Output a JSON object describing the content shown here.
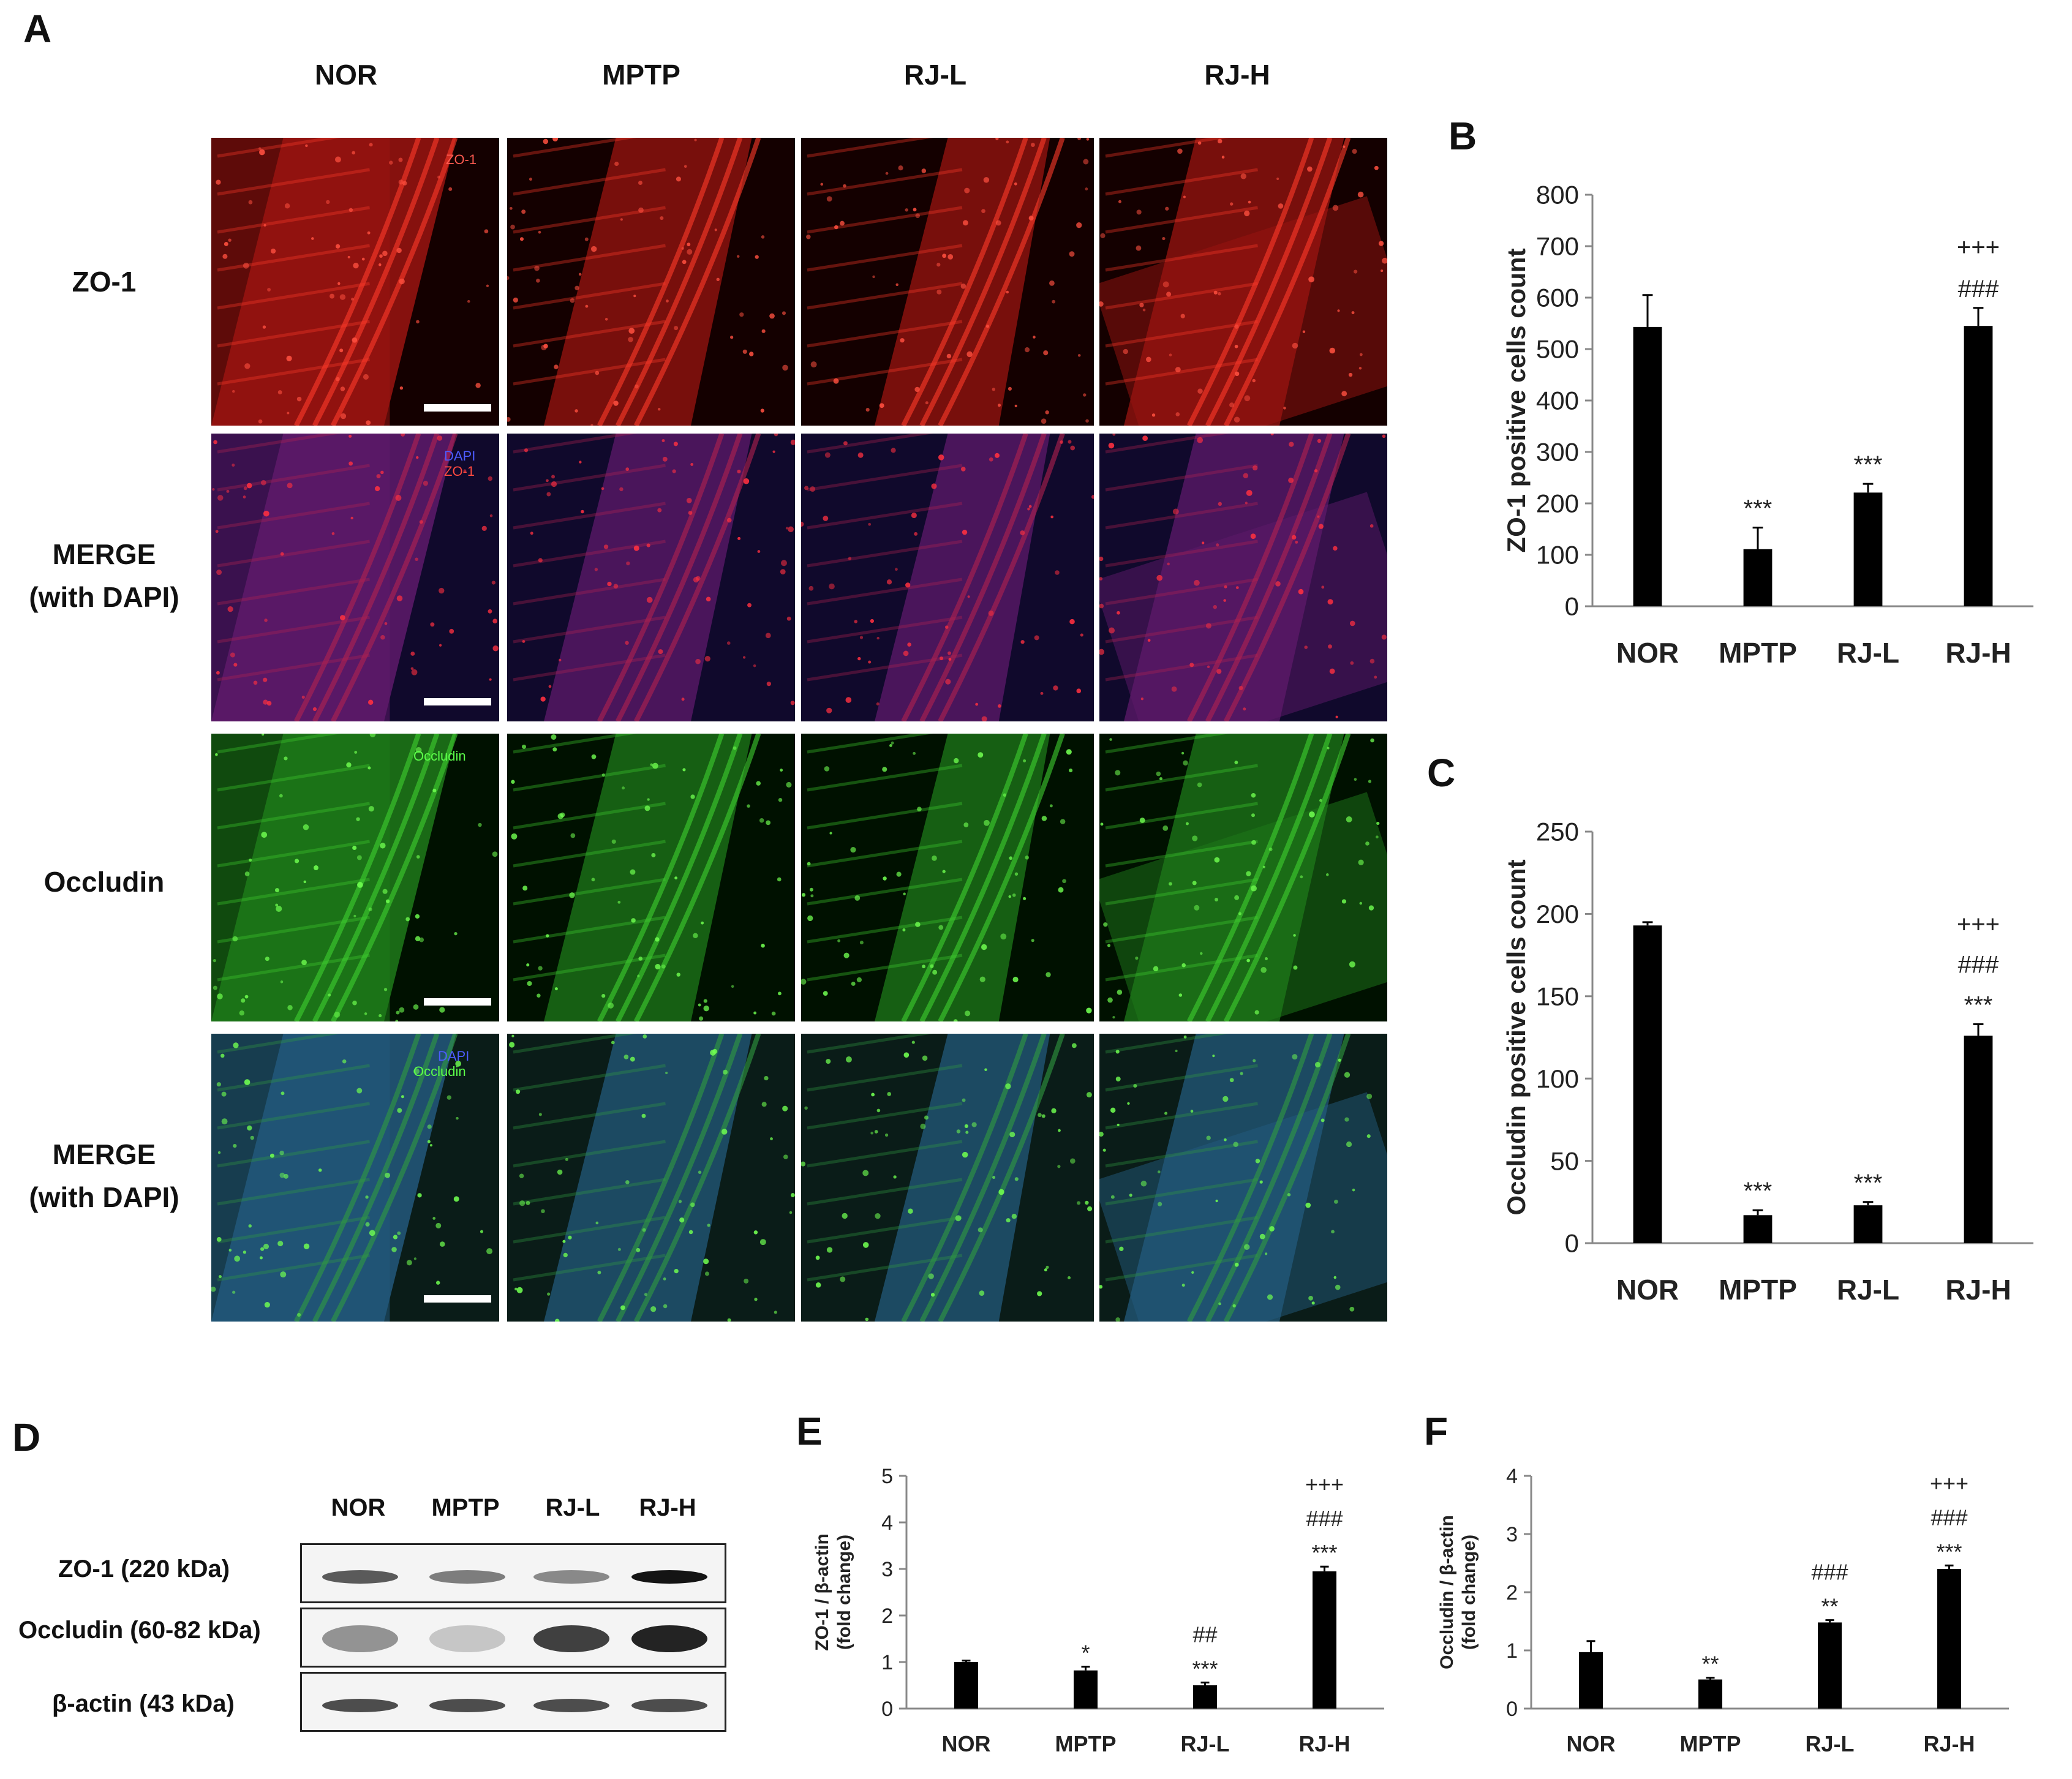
{
  "panel_letters": {
    "A": "A",
    "B": "B",
    "C": "C",
    "D": "D",
    "E": "E",
    "F": "F"
  },
  "panel_A": {
    "columns": [
      "NOR",
      "MPTP",
      "RJ-L",
      "RJ-H"
    ],
    "rows": [
      {
        "label_line1": "ZO-1",
        "label_line2": ""
      },
      {
        "label_line1": "MERGE",
        "label_line2": "(with DAPI)"
      },
      {
        "label_line1": "Occludin",
        "label_line2": ""
      },
      {
        "label_line1": "MERGE",
        "label_line2": "(with DAPI)"
      }
    ],
    "in_image_labels": {
      "zo1": "ZO-1",
      "merge1_dapi": "DAPI",
      "merge1_zo1": "ZO-1",
      "occludin": "Occludin",
      "merge2_dapi": "DAPI",
      "merge2_occludin": "Occludin"
    },
    "colors": {
      "zo1": "#d21a14",
      "merge_zo1": "#8a1a5a",
      "occludin": "#2fb82a",
      "merge_occludin": "#2a6aa8"
    }
  },
  "chart_data": [
    {
      "panel": "B",
      "type": "bar",
      "categories": [
        "NOR",
        "MPTP",
        "RJ-L",
        "RJ-H"
      ],
      "values": [
        543,
        111,
        221,
        545
      ],
      "errors": [
        62,
        42,
        17,
        35
      ],
      "annotations": [
        [],
        [
          "***"
        ],
        [
          "***"
        ],
        [
          "+++",
          "###"
        ]
      ],
      "ylabel": "ZO-1  positive cells count",
      "ylim": [
        0,
        800
      ],
      "yticks": [
        "0",
        "100",
        "200",
        "300",
        "400",
        "500",
        "600",
        "700",
        "800"
      ],
      "grid": false
    },
    {
      "panel": "C",
      "type": "bar",
      "categories": [
        "NOR",
        "MPTP",
        "RJ-L",
        "RJ-H"
      ],
      "values": [
        193,
        17,
        23,
        126
      ],
      "errors": [
        2,
        3,
        2,
        7
      ],
      "annotations": [
        [],
        [
          "***"
        ],
        [
          "***"
        ],
        [
          "+++",
          "###",
          "***"
        ]
      ],
      "ylabel": "Occludin  positive cells count",
      "ylim": [
        0,
        250
      ],
      "yticks": [
        "0",
        "50",
        "100",
        "150",
        "200",
        "250"
      ],
      "grid": false
    },
    {
      "panel": "E",
      "type": "bar",
      "categories": [
        "NOR",
        "MPTP",
        "RJ-L",
        "RJ-H"
      ],
      "values": [
        1.0,
        0.82,
        0.5,
        2.95
      ],
      "errors": [
        0.03,
        0.08,
        0.06,
        0.1
      ],
      "annotations": [
        [],
        [
          "*"
        ],
        [
          "##",
          "***"
        ],
        [
          "+++",
          "###",
          "***"
        ]
      ],
      "ylabel_line1": "ZO-1 / β-actin",
      "ylabel_line2": "(fold change)",
      "ylim": [
        0,
        5
      ],
      "yticks": [
        "0",
        "1",
        "2",
        "3",
        "4",
        "5"
      ],
      "grid": false
    },
    {
      "panel": "F",
      "type": "bar",
      "categories": [
        "NOR",
        "MPTP",
        "RJ-L",
        "RJ-H"
      ],
      "values": [
        0.97,
        0.5,
        1.48,
        2.4
      ],
      "errors": [
        0.19,
        0.03,
        0.04,
        0.06
      ],
      "annotations": [
        [],
        [
          "**"
        ],
        [
          "###",
          "**"
        ],
        [
          "+++",
          "###",
          "***"
        ]
      ],
      "ylabel_line1": "Occludin / β-actin",
      "ylabel_line2": "(fold change)",
      "ylim": [
        0,
        4
      ],
      "yticks": [
        "0",
        "1",
        "2",
        "3",
        "4"
      ],
      "grid": false
    }
  ],
  "panel_D": {
    "lanes": [
      "NOR",
      "MPTP",
      "RJ-L",
      "RJ-H"
    ],
    "blots": [
      {
        "label": "ZO-1 (220 kDa)",
        "intensity": [
          0.75,
          0.6,
          0.55,
          1.0
        ]
      },
      {
        "label": "Occludin  (60-82 kDa)",
        "intensity": [
          0.5,
          0.2,
          0.85,
          0.95
        ]
      },
      {
        "label": "β-actin (43 kDa)",
        "intensity": [
          0.8,
          0.8,
          0.8,
          0.8
        ]
      }
    ]
  }
}
